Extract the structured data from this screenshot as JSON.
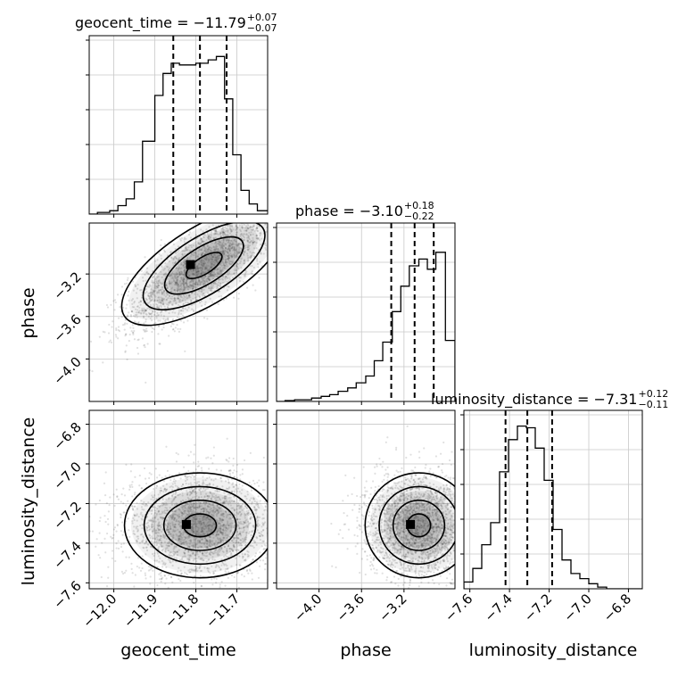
{
  "figure": {
    "type": "corner-plot"
  },
  "chart_data": {
    "type": "corner",
    "parameters": [
      {
        "name": "geocent_time",
        "label": "geocent_time",
        "title": {
          "prefix": "geocent_time = ",
          "median": "−11.79",
          "plus": "+0.07",
          "minus": "−0.07"
        },
        "range": [
          -12.06,
          -11.625
        ],
        "ticks": [
          -12.0,
          -11.9,
          -11.8,
          -11.7
        ],
        "tick_labels": [
          "−12.0",
          "−11.9",
          "−11.8",
          "−11.7"
        ],
        "quantiles": [
          -11.855,
          -11.79,
          -11.725
        ],
        "hist": {
          "edges": [
            -12.06,
            -12.04,
            -12.01,
            -11.99,
            -11.97,
            -11.95,
            -11.93,
            -11.9,
            -11.88,
            -11.86,
            -11.84,
            -11.82,
            -11.8,
            -11.77,
            -11.75,
            -11.73,
            -11.71,
            -11.69,
            -11.67,
            -11.65,
            -11.62
          ],
          "counts": [
            0.0,
            0.01,
            0.02,
            0.05,
            0.09,
            0.19,
            0.43,
            0.7,
            0.83,
            0.89,
            0.88,
            0.88,
            0.89,
            0.91,
            0.93,
            0.68,
            0.35,
            0.14,
            0.06,
            0.02
          ]
        }
      },
      {
        "name": "phase",
        "label": "phase",
        "title": {
          "prefix": "phase = ",
          "median": "−3.10",
          "plus": "+0.18",
          "minus": "−0.22"
        },
        "range": [
          -4.4,
          -2.72
        ],
        "ticks": [
          -4.0,
          -3.6,
          -3.2
        ],
        "tick_labels": [
          "−4.0",
          "−3.6",
          "−3.2"
        ],
        "quantiles": [
          -3.32,
          -3.1,
          -2.92
        ],
        "hist": {
          "edges": [
            -4.4,
            -4.32,
            -4.23,
            -4.15,
            -4.07,
            -3.98,
            -3.9,
            -3.82,
            -3.73,
            -3.65,
            -3.56,
            -3.48,
            -3.4,
            -3.31,
            -3.23,
            -3.15,
            -3.06,
            -2.98,
            -2.9,
            -2.81,
            -2.72
          ],
          "counts": [
            0.0,
            0.005,
            0.01,
            0.01,
            0.02,
            0.03,
            0.04,
            0.06,
            0.08,
            0.11,
            0.15,
            0.24,
            0.35,
            0.53,
            0.68,
            0.8,
            0.84,
            0.78,
            0.88,
            0.36
          ]
        }
      },
      {
        "name": "luminosity_distance",
        "label": "luminosity_distance",
        "title": {
          "prefix": "luminosity_distance = ",
          "median": "−7.31",
          "plus": "+0.12",
          "minus": "−0.11"
        },
        "range": [
          -7.63,
          -6.73
        ],
        "ticks": [
          -7.6,
          -7.4,
          -7.2,
          -7.0,
          -6.8
        ],
        "tick_labels": [
          "−7.6",
          "−7.4",
          "−7.2",
          "−7.0",
          "−6.8"
        ],
        "quantiles": [
          -7.42,
          -7.31,
          -7.185
        ],
        "hist": {
          "edges": [
            -7.63,
            -7.585,
            -7.54,
            -7.495,
            -7.45,
            -7.405,
            -7.36,
            -7.315,
            -7.27,
            -7.225,
            -7.18,
            -7.135,
            -7.09,
            -7.045,
            -7.0,
            -6.955,
            -6.91,
            -6.865,
            -6.82,
            -6.775,
            -6.73
          ],
          "counts": [
            0.04,
            0.12,
            0.26,
            0.39,
            0.69,
            0.88,
            0.96,
            0.95,
            0.83,
            0.64,
            0.35,
            0.17,
            0.09,
            0.06,
            0.03,
            0.01,
            0.0,
            0.0,
            0.0,
            0.0
          ]
        }
      }
    ],
    "pairs": [
      {
        "x": "geocent_time",
        "y": "phase",
        "center": [
          -11.78,
          -3.12
        ],
        "spread": [
          0.08,
          0.25
        ],
        "corr": 0.78,
        "extent_lo": [
          -12.02,
          -4.3
        ],
        "extent_hi": [
          -11.63,
          -2.75
        ]
      },
      {
        "x": "geocent_time",
        "y": "luminosity_distance",
        "center": [
          -11.79,
          -7.31
        ],
        "spread": [
          0.08,
          0.115
        ],
        "corr": 0.0,
        "extent_lo": [
          -12.03,
          -7.58
        ],
        "extent_hi": [
          -11.63,
          -6.82
        ]
      },
      {
        "x": "phase",
        "y": "luminosity_distance",
        "center": [
          -3.06,
          -7.31
        ],
        "spread": [
          0.22,
          0.115
        ],
        "corr": 0.0,
        "extent_lo": [
          -4.2,
          -7.58
        ],
        "extent_hi": [
          -2.72,
          -6.82
        ]
      }
    ],
    "contour_levels": [
      "0.118",
      "0.393",
      "0.675",
      "0.864"
    ],
    "grid": true
  }
}
